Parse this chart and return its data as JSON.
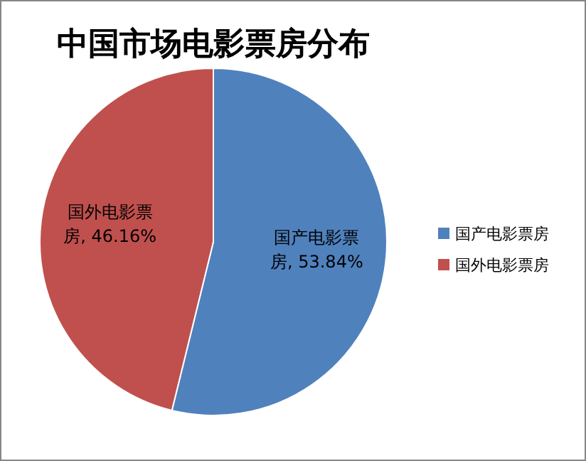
{
  "chart_data": {
    "type": "pie",
    "title": "中国市场电影票房分布",
    "categories": [
      "国产电影票房",
      "国外电影票房"
    ],
    "values": [
      53.84,
      46.16
    ],
    "colors": [
      "#4f81bd",
      "#c0504d"
    ],
    "value_labels": [
      "国产电影票房, 53.84%",
      "国外电影票房, 46.16%"
    ],
    "legend": "right"
  }
}
